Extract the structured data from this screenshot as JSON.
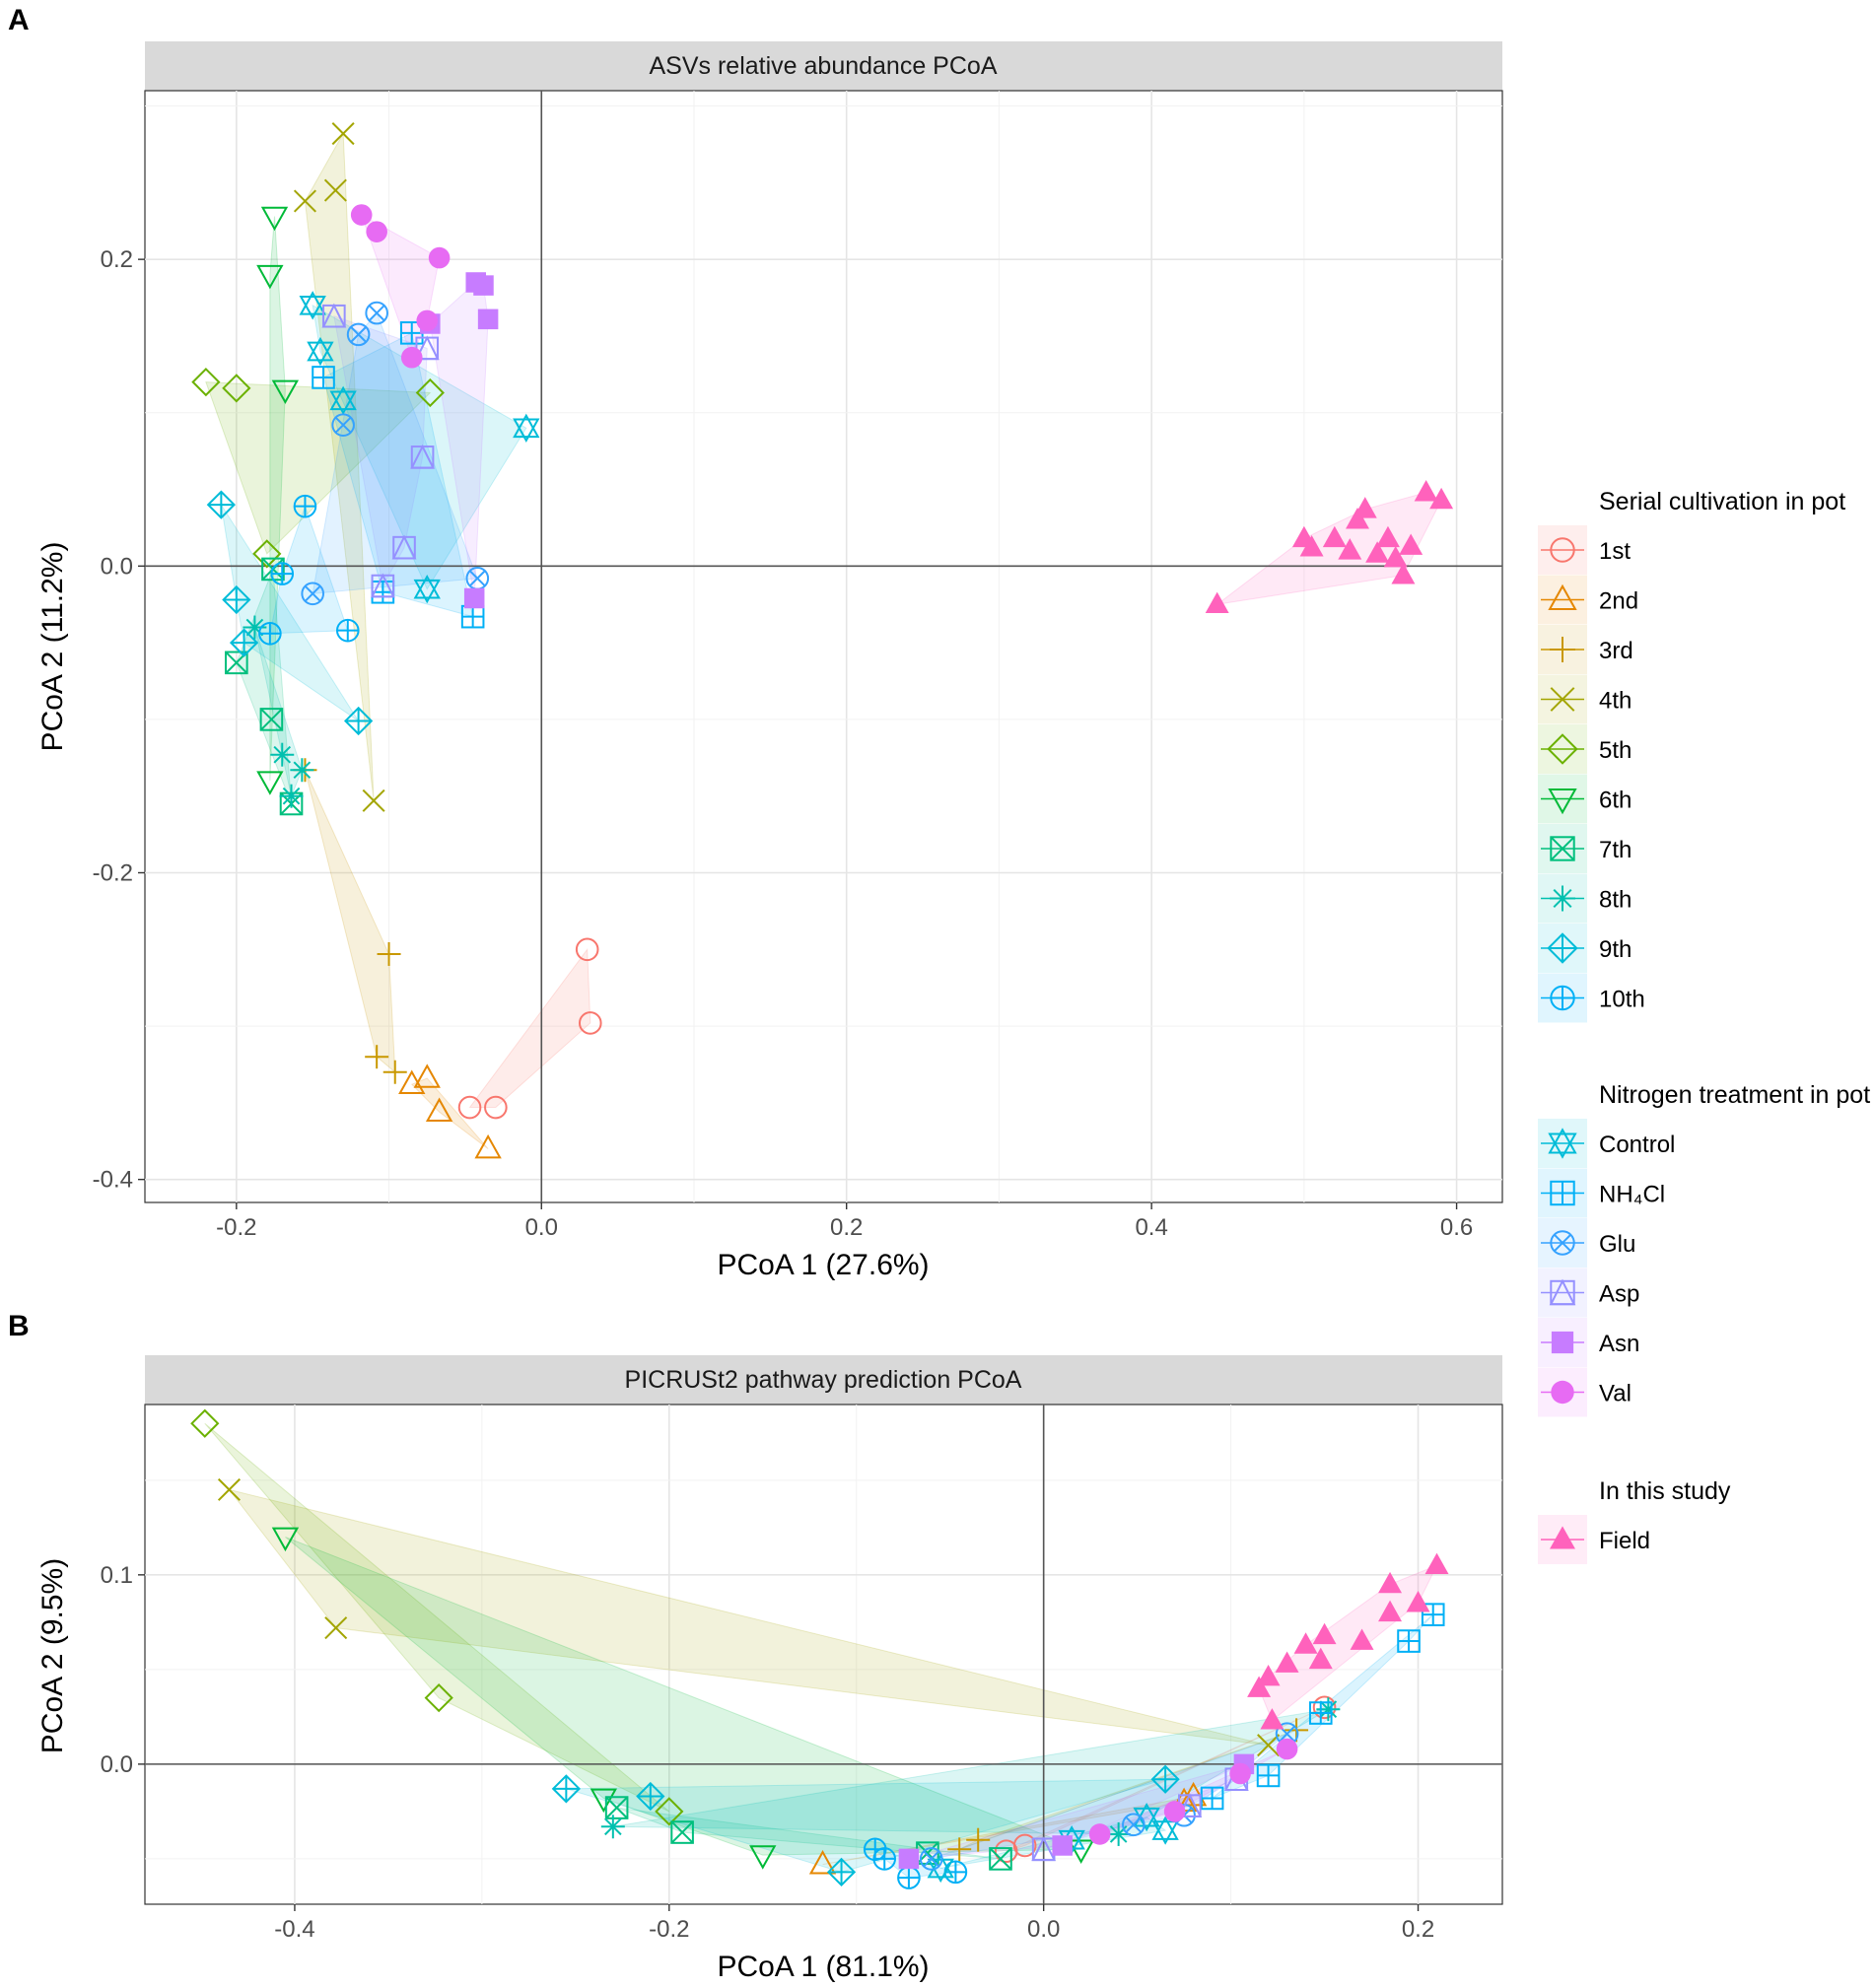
{
  "figure": {
    "panel_labels": [
      "A",
      "B"
    ]
  },
  "colors": {
    "1st": "#F8766D",
    "2nd": "#E58700",
    "3rd": "#C99800",
    "4th": "#A3A500",
    "5th": "#6BB100",
    "6th": "#00BA38",
    "7th": "#00BF7D",
    "8th": "#00C0AF",
    "9th": "#00BCD8",
    "10th": "#00B0F6",
    "Control": "#00BCD8",
    "NH4Cl": "#00B0F6",
    "Glu": "#35A2FF",
    "Asp": "#9590FF",
    "Asn": "#C77CFF",
    "Val": "#E76BF3",
    "Field": "#FF62BC"
  },
  "legend": {
    "serial": {
      "title": "Serial cultivation in pot",
      "items": [
        {
          "label": "1st",
          "color": "#F8766D",
          "shape": "circle-open"
        },
        {
          "label": "2nd",
          "color": "#E58700",
          "shape": "triangle-open"
        },
        {
          "label": "3rd",
          "color": "#C99800",
          "shape": "plus"
        },
        {
          "label": "4th",
          "color": "#A3A500",
          "shape": "cross"
        },
        {
          "label": "5th",
          "color": "#6BB100",
          "shape": "diamond-open"
        },
        {
          "label": "6th",
          "color": "#00BA38",
          "shape": "triangle-down-open"
        },
        {
          "label": "7th",
          "color": "#00BF7D",
          "shape": "square-cross"
        },
        {
          "label": "8th",
          "color": "#00C0AF",
          "shape": "asterisk"
        },
        {
          "label": "9th",
          "color": "#00BCD8",
          "shape": "diamond-plus"
        },
        {
          "label": "10th",
          "color": "#00B0F6",
          "shape": "circle-plus"
        }
      ]
    },
    "nitrogen": {
      "title": "Nitrogen treatment in pot",
      "items": [
        {
          "label": "Control",
          "color": "#00BCD8",
          "shape": "star-of-david"
        },
        {
          "label": "NH₄Cl",
          "color": "#00B0F6",
          "shape": "square-plus"
        },
        {
          "label": "Glu",
          "color": "#35A2FF",
          "shape": "circle-cross"
        },
        {
          "label": "Asp",
          "color": "#9590FF",
          "shape": "square-triangle"
        },
        {
          "label": "Asn",
          "color": "#C77CFF",
          "shape": "square-filled"
        },
        {
          "label": "Val",
          "color": "#E76BF3",
          "shape": "circle-filled"
        }
      ]
    },
    "study": {
      "title": "In this study",
      "items": [
        {
          "label": "Field",
          "color": "#FF62BC",
          "shape": "triangle-filled"
        }
      ]
    }
  },
  "chart_data": [
    {
      "type": "scatter",
      "panel": "A",
      "title": "ASVs relative abundance PCoA",
      "xlabel": "PCoA 1 (27.6%)",
      "ylabel": "PCoA 2 (11.2%)",
      "xlim": [
        -0.26,
        0.63
      ],
      "ylim": [
        -0.415,
        0.31
      ],
      "xticks": [
        -0.2,
        0.0,
        0.2,
        0.4,
        0.6
      ],
      "xtick_labels": [
        "-0.2",
        "0.0",
        "0.2",
        "0.4",
        "0.6"
      ],
      "yticks": [
        -0.4,
        -0.2,
        0.0,
        0.2
      ],
      "ytick_labels": [
        "-0.4",
        "-0.2",
        "0.0",
        "0.2"
      ],
      "grid": true,
      "zero_lines": true,
      "groups": [
        {
          "name": "1st",
          "shape": "circle-open",
          "points": [
            [
              0.03,
              -0.25
            ],
            [
              0.032,
              -0.298
            ],
            [
              -0.047,
              -0.353
            ],
            [
              -0.03,
              -0.353
            ]
          ]
        },
        {
          "name": "2nd",
          "shape": "triangle-open",
          "points": [
            [
              -0.085,
              -0.338
            ],
            [
              -0.075,
              -0.334
            ],
            [
              -0.067,
              -0.356
            ],
            [
              -0.035,
              -0.38
            ]
          ]
        },
        {
          "name": "3rd",
          "shape": "plus",
          "points": [
            [
              -0.1,
              -0.253
            ],
            [
              -0.108,
              -0.32
            ],
            [
              -0.096,
              -0.33
            ],
            [
              -0.155,
              -0.133
            ]
          ]
        },
        {
          "name": "4th",
          "shape": "cross",
          "points": [
            [
              -0.13,
              0.282
            ],
            [
              -0.135,
              0.245
            ],
            [
              -0.155,
              0.238
            ],
            [
              -0.11,
              -0.153
            ]
          ]
        },
        {
          "name": "5th",
          "shape": "diamond-open",
          "points": [
            [
              -0.22,
              0.12
            ],
            [
              -0.2,
              0.116
            ],
            [
              -0.073,
              0.113
            ],
            [
              -0.18,
              0.008
            ]
          ]
        },
        {
          "name": "6th",
          "shape": "triangle-down-open",
          "points": [
            [
              -0.175,
              0.228
            ],
            [
              -0.178,
              0.19
            ],
            [
              -0.168,
              0.115
            ],
            [
              -0.178,
              -0.14
            ]
          ]
        },
        {
          "name": "7th",
          "shape": "square-cross",
          "points": [
            [
              -0.2,
              -0.063
            ],
            [
              -0.177,
              -0.1
            ],
            [
              -0.176,
              -0.002
            ],
            [
              -0.164,
              -0.155
            ]
          ]
        },
        {
          "name": "8th",
          "shape": "asterisk",
          "points": [
            [
              -0.188,
              -0.04
            ],
            [
              -0.17,
              -0.123
            ],
            [
              -0.157,
              -0.133
            ],
            [
              -0.164,
              -0.15
            ]
          ]
        },
        {
          "name": "9th",
          "shape": "diamond-plus",
          "points": [
            [
              -0.21,
              0.04
            ],
            [
              -0.2,
              -0.022
            ],
            [
              -0.195,
              -0.05
            ],
            [
              -0.12,
              -0.101
            ]
          ]
        },
        {
          "name": "10th",
          "shape": "circle-plus",
          "points": [
            [
              -0.155,
              0.039
            ],
            [
              -0.17,
              -0.005
            ],
            [
              -0.178,
              -0.044
            ],
            [
              -0.127,
              -0.042
            ]
          ]
        },
        {
          "name": "Control",
          "shape": "star-of-david",
          "points": [
            [
              -0.15,
              0.17
            ],
            [
              -0.145,
              0.14
            ],
            [
              -0.13,
              0.108
            ],
            [
              -0.01,
              0.09
            ],
            [
              -0.075,
              -0.015
            ]
          ]
        },
        {
          "name": "NH4Cl",
          "shape": "square-plus",
          "points": [
            [
              -0.085,
              0.152
            ],
            [
              -0.143,
              0.123
            ],
            [
              -0.104,
              -0.017
            ],
            [
              -0.045,
              -0.033
            ]
          ]
        },
        {
          "name": "Glu",
          "shape": "circle-cross",
          "points": [
            [
              -0.108,
              0.165
            ],
            [
              -0.12,
              0.151
            ],
            [
              -0.13,
              0.092
            ],
            [
              -0.15,
              -0.018
            ],
            [
              -0.042,
              -0.008
            ]
          ]
        },
        {
          "name": "Asp",
          "shape": "square-triangle",
          "points": [
            [
              -0.136,
              0.163
            ],
            [
              -0.075,
              0.142
            ],
            [
              -0.078,
              0.071
            ],
            [
              -0.09,
              0.012
            ],
            [
              -0.104,
              -0.013
            ]
          ]
        },
        {
          "name": "Asn",
          "shape": "square-filled",
          "points": [
            [
              -0.043,
              0.185
            ],
            [
              -0.038,
              0.183
            ],
            [
              -0.035,
              0.161
            ],
            [
              -0.073,
              0.158
            ],
            [
              -0.044,
              -0.021
            ]
          ]
        },
        {
          "name": "Val",
          "shape": "circle-filled",
          "points": [
            [
              -0.118,
              0.229
            ],
            [
              -0.108,
              0.218
            ],
            [
              -0.067,
              0.201
            ],
            [
              -0.075,
              0.16
            ],
            [
              -0.085,
              0.136
            ]
          ]
        },
        {
          "name": "Field",
          "shape": "triangle-filled",
          "points": [
            [
              0.443,
              -0.025
            ],
            [
              0.5,
              0.018
            ],
            [
              0.505,
              0.012
            ],
            [
              0.52,
              0.018
            ],
            [
              0.53,
              0.01
            ],
            [
              0.535,
              0.03
            ],
            [
              0.54,
              0.037
            ],
            [
              0.548,
              0.008
            ],
            [
              0.555,
              0.018
            ],
            [
              0.56,
              0.005
            ],
            [
              0.565,
              -0.006
            ],
            [
              0.57,
              0.013
            ],
            [
              0.58,
              0.048
            ],
            [
              0.59,
              0.043
            ]
          ]
        }
      ]
    },
    {
      "type": "scatter",
      "panel": "B",
      "title": "PICRUSt2 pathway prediction PCoA",
      "xlabel": "PCoA 1 (81.1%)",
      "ylabel": "PCoA 2 (9.5%)",
      "xlim": [
        -0.48,
        0.245
      ],
      "ylim": [
        -0.074,
        0.19
      ],
      "xticks": [
        -0.4,
        -0.2,
        0.0,
        0.2
      ],
      "xtick_labels": [
        "-0.4",
        "-0.2",
        "0.0",
        "0.2"
      ],
      "yticks": [
        0.0,
        0.1
      ],
      "ytick_labels": [
        "0.0",
        "0.1"
      ],
      "grid": true,
      "zero_lines": true,
      "groups": [
        {
          "name": "1st",
          "shape": "circle-open",
          "points": [
            [
              -0.01,
              -0.043
            ],
            [
              -0.02,
              -0.046
            ],
            [
              0.15,
              0.03
            ]
          ]
        },
        {
          "name": "2nd",
          "shape": "triangle-open",
          "points": [
            [
              -0.118,
              -0.053
            ],
            [
              0.08,
              -0.017
            ],
            [
              0.075,
              -0.02
            ]
          ]
        },
        {
          "name": "3rd",
          "shape": "plus",
          "points": [
            [
              -0.035,
              -0.04
            ],
            [
              -0.045,
              -0.045
            ],
            [
              0.135,
              0.018
            ]
          ]
        },
        {
          "name": "4th",
          "shape": "cross",
          "points": [
            [
              -0.435,
              0.145
            ],
            [
              -0.378,
              0.072
            ],
            [
              0.12,
              0.01
            ]
          ]
        },
        {
          "name": "5th",
          "shape": "diamond-open",
          "points": [
            [
              -0.448,
              0.18
            ],
            [
              -0.323,
              0.035
            ],
            [
              -0.2,
              -0.025
            ]
          ]
        },
        {
          "name": "6th",
          "shape": "triangle-down-open",
          "points": [
            [
              -0.405,
              0.12
            ],
            [
              -0.235,
              -0.018
            ],
            [
              -0.15,
              -0.048
            ],
            [
              0.02,
              -0.045
            ]
          ]
        },
        {
          "name": "7th",
          "shape": "square-cross",
          "points": [
            [
              -0.228,
              -0.023
            ],
            [
              -0.193,
              -0.036
            ],
            [
              -0.062,
              -0.047
            ],
            [
              -0.023,
              -0.05
            ]
          ]
        },
        {
          "name": "8th",
          "shape": "asterisk",
          "points": [
            [
              -0.23,
              -0.033
            ],
            [
              0.04,
              -0.037
            ],
            [
              0.152,
              0.029
            ]
          ]
        },
        {
          "name": "9th",
          "shape": "diamond-plus",
          "points": [
            [
              -0.255,
              -0.013
            ],
            [
              -0.21,
              -0.017
            ],
            [
              -0.108,
              -0.057
            ],
            [
              0.065,
              -0.008
            ]
          ]
        },
        {
          "name": "10th",
          "shape": "circle-plus",
          "points": [
            [
              -0.09,
              -0.045
            ],
            [
              -0.072,
              -0.06
            ],
            [
              -0.047,
              -0.057
            ],
            [
              -0.085,
              -0.05
            ]
          ]
        },
        {
          "name": "Control",
          "shape": "star-of-david",
          "points": [
            [
              -0.055,
              -0.055
            ],
            [
              0.015,
              -0.04
            ],
            [
              0.055,
              -0.028
            ],
            [
              0.065,
              -0.035
            ]
          ]
        },
        {
          "name": "NH4Cl",
          "shape": "square-plus",
          "points": [
            [
              0.09,
              -0.018
            ],
            [
              0.12,
              -0.006
            ],
            [
              0.148,
              0.027
            ],
            [
              0.195,
              0.065
            ],
            [
              0.208,
              0.079
            ]
          ]
        },
        {
          "name": "Glu",
          "shape": "circle-cross",
          "points": [
            [
              -0.06,
              -0.05
            ],
            [
              0.075,
              -0.027
            ],
            [
              0.13,
              0.016
            ],
            [
              0.048,
              -0.032
            ]
          ]
        },
        {
          "name": "Asp",
          "shape": "square-triangle",
          "points": [
            [
              0.0,
              -0.045
            ],
            [
              0.078,
              -0.022
            ],
            [
              0.103,
              -0.008
            ]
          ]
        },
        {
          "name": "Asn",
          "shape": "square-filled",
          "points": [
            [
              -0.072,
              -0.05
            ],
            [
              0.107,
              0.0
            ],
            [
              0.01,
              -0.043
            ]
          ]
        },
        {
          "name": "Val",
          "shape": "circle-filled",
          "points": [
            [
              0.03,
              -0.037
            ],
            [
              0.07,
              -0.025
            ],
            [
              0.105,
              -0.005
            ],
            [
              0.13,
              0.008
            ]
          ]
        },
        {
          "name": "Field",
          "shape": "triangle-filled",
          "points": [
            [
              0.115,
              0.04
            ],
            [
              0.12,
              0.046
            ],
            [
              0.122,
              0.023
            ],
            [
              0.13,
              0.053
            ],
            [
              0.14,
              0.063
            ],
            [
              0.148,
              0.055
            ],
            [
              0.15,
              0.068
            ],
            [
              0.17,
              0.065
            ],
            [
              0.185,
              0.095
            ],
            [
              0.185,
              0.08
            ],
            [
              0.2,
              0.085
            ],
            [
              0.21,
              0.105
            ]
          ]
        }
      ]
    }
  ]
}
